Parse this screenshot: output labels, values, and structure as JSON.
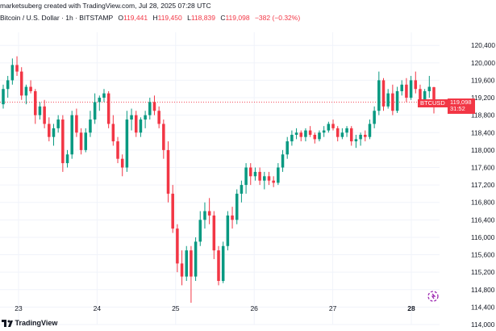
{
  "header": {
    "credit": "marketsuberg created with TradingView.com, Jul 28, 2025 07:28 UTC",
    "symbol": "Bitcoin / U.S. Dollar · 1h · BITSTAMP",
    "o_label": "O",
    "o_value": "119,441",
    "h_label": "H",
    "h_value": "119,450",
    "l_label": "L",
    "l_value": "118,839",
    "c_label": "C",
    "c_value": "119,098",
    "change": "−382 (−0.32%)"
  },
  "price_tag": {
    "symbol": "BTCUSD",
    "price": "119,098",
    "countdown": "31:52"
  },
  "footer": {
    "brand": "TradingView"
  },
  "colors": {
    "up": "#089981",
    "down": "#f23645",
    "grid": "#f0f3fa",
    "axis_text": "#131722"
  },
  "chart_data": {
    "type": "candlestick",
    "ylim": [
      114000,
      120700
    ],
    "y_ticks": [
      "120,400",
      "120,000",
      "119,600",
      "119,200",
      "118,800",
      "118,400",
      "118,000",
      "117,600",
      "117,200",
      "116,800",
      "116,400",
      "116,000",
      "115,600",
      "115,200",
      "114,800",
      "114,400",
      "114,000"
    ],
    "x_ticks": [
      "23",
      "24",
      "25",
      "26",
      "27",
      "28"
    ],
    "x_tick_bold": "28",
    "last_price": 119098,
    "candles": [
      [
        119050,
        119500,
        118950,
        119400
      ],
      [
        119400,
        119700,
        119200,
        119600
      ],
      [
        119600,
        120100,
        119500,
        119950
      ],
      [
        119950,
        120150,
        119700,
        119800
      ],
      [
        119800,
        119900,
        119150,
        119250
      ],
      [
        119250,
        119500,
        119050,
        119450
      ],
      [
        119450,
        119600,
        119300,
        119350
      ],
      [
        119350,
        119400,
        118600,
        118800
      ],
      [
        118800,
        119100,
        118700,
        119000
      ],
      [
        119000,
        119150,
        118500,
        118600
      ],
      [
        118600,
        118750,
        118200,
        118300
      ],
      [
        118300,
        118600,
        118100,
        118500
      ],
      [
        118500,
        118800,
        118400,
        118700
      ],
      [
        118700,
        118800,
        117500,
        117700
      ],
      [
        117700,
        118000,
        117600,
        117900
      ],
      [
        117900,
        118900,
        117800,
        118800
      ],
      [
        118800,
        118950,
        118300,
        118400
      ],
      [
        118400,
        118500,
        117900,
        118000
      ],
      [
        118000,
        118500,
        117950,
        118400
      ],
      [
        118400,
        118900,
        118300,
        118700
      ],
      [
        118700,
        119300,
        118600,
        119100
      ],
      [
        119100,
        119250,
        118900,
        119200
      ],
      [
        119200,
        119400,
        119100,
        119300
      ],
      [
        119300,
        119350,
        118500,
        118600
      ],
      [
        118600,
        118800,
        118100,
        118200
      ],
      [
        118200,
        118300,
        117700,
        117800
      ],
      [
        117800,
        117900,
        117400,
        117600
      ],
      [
        117600,
        118900,
        117500,
        118700
      ],
      [
        118700,
        118950,
        118450,
        118800
      ],
      [
        118800,
        118900,
        118300,
        118400
      ],
      [
        118400,
        118750,
        118300,
        118700
      ],
      [
        118700,
        118900,
        118500,
        118800
      ],
      [
        118800,
        119200,
        118700,
        119100
      ],
      [
        119100,
        119250,
        118800,
        118900
      ],
      [
        118900,
        119000,
        118500,
        118600
      ],
      [
        118600,
        118700,
        117800,
        118000
      ],
      [
        118000,
        118200,
        116800,
        117000
      ],
      [
        117000,
        117200,
        116100,
        116200
      ],
      [
        116200,
        116300,
        115200,
        115400
      ],
      [
        115400,
        115700,
        114900,
        115100
      ],
      [
        115100,
        115800,
        115000,
        115700
      ],
      [
        115700,
        115800,
        114500,
        115100
      ],
      [
        115100,
        116000,
        115000,
        115900
      ],
      [
        115900,
        116600,
        115800,
        116400
      ],
      [
        116400,
        116800,
        116200,
        116600
      ],
      [
        116600,
        116900,
        116300,
        116500
      ],
      [
        116500,
        116600,
        115500,
        115700
      ],
      [
        115700,
        115800,
        114900,
        115000
      ],
      [
        115000,
        115900,
        114950,
        115800
      ],
      [
        115800,
        116600,
        115700,
        116500
      ],
      [
        116500,
        116700,
        116200,
        116400
      ],
      [
        116400,
        117100,
        116300,
        117000
      ],
      [
        117000,
        117300,
        116800,
        117200
      ],
      [
        117200,
        117700,
        117000,
        117600
      ],
      [
        117600,
        117700,
        117200,
        117400
      ],
      [
        117400,
        117600,
        117300,
        117500
      ],
      [
        117500,
        117600,
        117200,
        117300
      ],
      [
        117300,
        117500,
        117100,
        117400
      ],
      [
        117400,
        117500,
        117200,
        117300
      ],
      [
        117300,
        117400,
        117150,
        117250
      ],
      [
        117250,
        117700,
        117200,
        117600
      ],
      [
        117600,
        118000,
        117500,
        117900
      ],
      [
        117900,
        118300,
        117800,
        118200
      ],
      [
        118200,
        118450,
        118100,
        118350
      ],
      [
        118350,
        118500,
        118250,
        118400
      ],
      [
        118400,
        118450,
        118200,
        118300
      ],
      [
        118300,
        118500,
        118200,
        118450
      ],
      [
        118450,
        118550,
        118300,
        118350
      ],
      [
        118350,
        118400,
        118150,
        118250
      ],
      [
        118250,
        118450,
        118200,
        118400
      ],
      [
        118400,
        118550,
        118300,
        118450
      ],
      [
        118450,
        118650,
        118400,
        118600
      ],
      [
        118600,
        118700,
        118450,
        118500
      ],
      [
        118500,
        118550,
        118200,
        118300
      ],
      [
        118300,
        118500,
        118250,
        118400
      ],
      [
        118400,
        118550,
        118300,
        118500
      ],
      [
        118500,
        118550,
        118100,
        118200
      ],
      [
        118200,
        118350,
        118050,
        118250
      ],
      [
        118250,
        118400,
        118100,
        118350
      ],
      [
        118350,
        118450,
        118200,
        118300
      ],
      [
        118300,
        118700,
        118250,
        118600
      ],
      [
        118600,
        119000,
        118500,
        118900
      ],
      [
        118900,
        119800,
        118800,
        119600
      ],
      [
        119600,
        119650,
        118900,
        119000
      ],
      [
        119000,
        119400,
        118950,
        119300
      ],
      [
        119300,
        119500,
        118800,
        118900
      ],
      [
        118900,
        119450,
        118850,
        119350
      ],
      [
        119350,
        119600,
        119250,
        119500
      ],
      [
        119500,
        119650,
        119100,
        119200
      ],
      [
        119200,
        119700,
        119150,
        119600
      ],
      [
        119600,
        119800,
        119300,
        119400
      ],
      [
        119400,
        119500,
        119000,
        119100
      ],
      [
        119100,
        119400,
        119050,
        119350
      ],
      [
        119350,
        119700,
        119200,
        119450
      ],
      [
        119441,
        119450,
        118839,
        119098
      ]
    ]
  }
}
